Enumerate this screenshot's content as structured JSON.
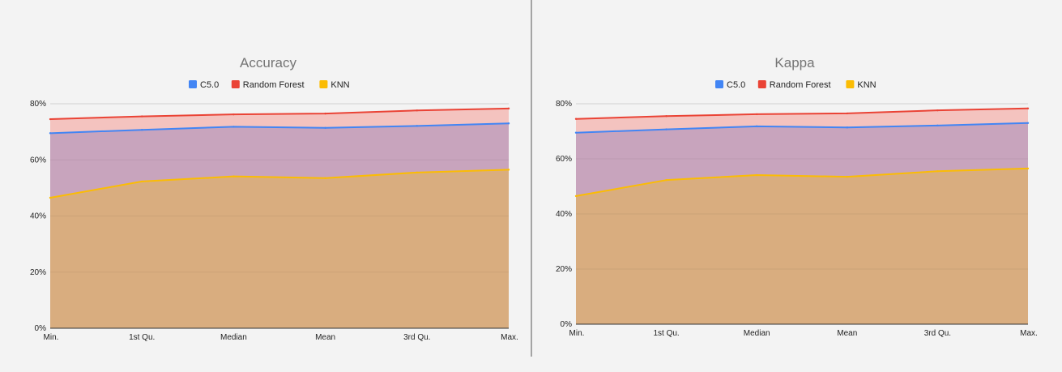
{
  "chart_data": [
    {
      "type": "area",
      "title": "Accuracy",
      "categories": [
        "Min.",
        "1st Qu.",
        "Median",
        "Mean",
        "3rd Qu.",
        "Max."
      ],
      "y_ticks": [
        "0%",
        "20%",
        "40%",
        "60%",
        "80%"
      ],
      "ylim": [
        0,
        0.8
      ],
      "grid": true,
      "legend_position": "top",
      "series": [
        {
          "name": "C5.0",
          "color": "#4285f4",
          "values": [
            0.695,
            0.707,
            0.718,
            0.714,
            0.721,
            0.73
          ]
        },
        {
          "name": "Random Forest",
          "color": "#ea4335",
          "values": [
            0.745,
            0.755,
            0.762,
            0.765,
            0.776,
            0.783
          ]
        },
        {
          "name": "KNN",
          "color": "#fbbc04",
          "values": [
            0.465,
            0.523,
            0.541,
            0.535,
            0.555,
            0.565
          ]
        }
      ]
    },
    {
      "type": "area",
      "title": "Kappa",
      "categories": [
        "Min.",
        "1st Qu.",
        "Median",
        "Mean",
        "3rd Qu.",
        "Max."
      ],
      "y_ticks": [
        "0%",
        "20%",
        "40%",
        "60%",
        "80%"
      ],
      "ylim": [
        0,
        0.8
      ],
      "grid": true,
      "legend_position": "top",
      "series": [
        {
          "name": "C5.0",
          "color": "#4285f4",
          "values": [
            0.695,
            0.707,
            0.718,
            0.714,
            0.721,
            0.73
          ]
        },
        {
          "name": "Random Forest",
          "color": "#ea4335",
          "values": [
            0.745,
            0.755,
            0.762,
            0.765,
            0.776,
            0.783
          ]
        },
        {
          "name": "KNN",
          "color": "#fbbc04",
          "values": [
            0.465,
            0.523,
            0.541,
            0.535,
            0.555,
            0.565
          ]
        }
      ]
    }
  ]
}
